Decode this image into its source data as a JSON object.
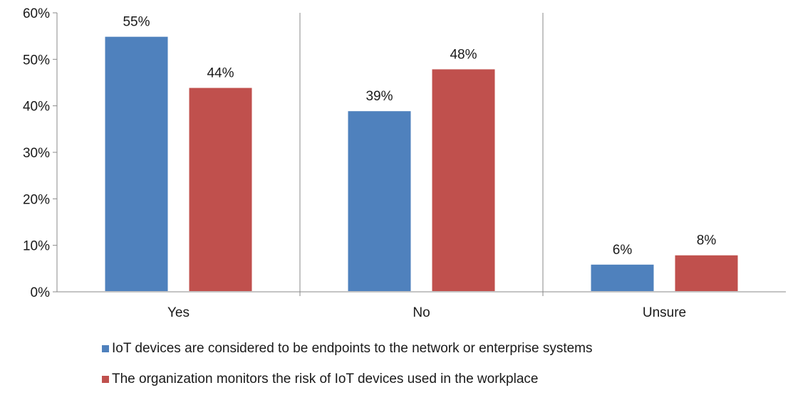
{
  "chart_data": {
    "type": "bar",
    "categories": [
      "Yes",
      "No",
      "Unsure"
    ],
    "series": [
      {
        "name": "IoT devices are considered to be endpoints to the network or enterprise systems",
        "values": [
          55,
          39,
          6
        ],
        "labels": [
          "55%",
          "39%",
          "6%"
        ],
        "color": "#4F81BD"
      },
      {
        "name": "The organization monitors the risk of IoT devices used in the workplace",
        "values": [
          44,
          48,
          8
        ],
        "labels": [
          "44%",
          "48%",
          "8%"
        ],
        "color": "#C0504D"
      }
    ],
    "ylim": [
      0,
      60
    ],
    "yticks": [
      "0%",
      "10%",
      "20%",
      "30%",
      "40%",
      "50%",
      "60%"
    ],
    "ytick_values": [
      0,
      10,
      20,
      30,
      40,
      50,
      60
    ],
    "grid": false,
    "category_separators": true,
    "legend_position": "bottom",
    "title": "",
    "xlabel": "",
    "ylabel": ""
  }
}
